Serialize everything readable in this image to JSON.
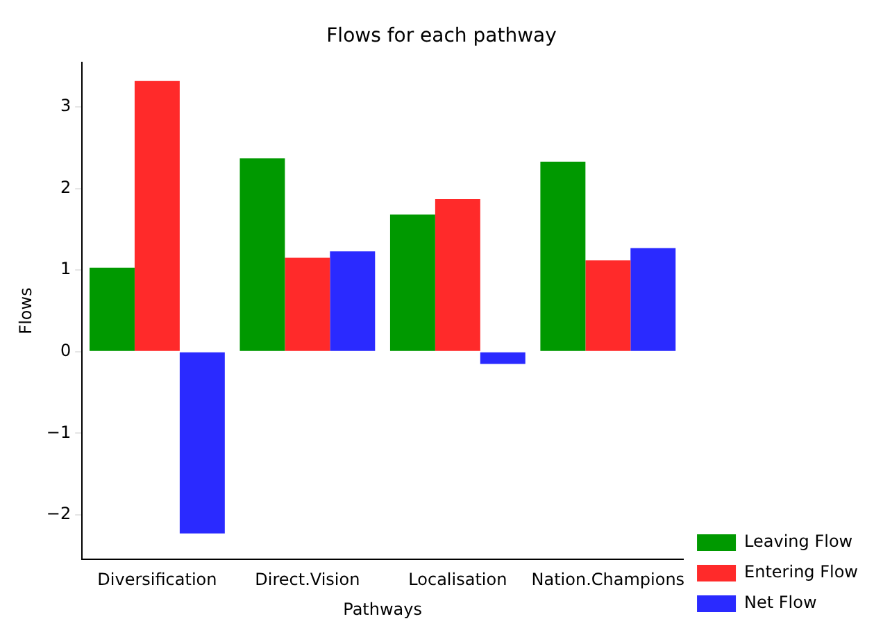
{
  "chart_data": {
    "type": "bar",
    "title": "Flows for each pathway",
    "xlabel": "Pathways",
    "ylabel": "Flows",
    "categories": [
      "Diversification",
      "Direct.Vision",
      "Localisation",
      "Nation.Champions"
    ],
    "series": [
      {
        "name": "Leaving Flow",
        "color": "#009900",
        "values": [
          1.03,
          2.37,
          1.68,
          2.33
        ]
      },
      {
        "name": "Entering Flow",
        "color": "#ff2a2a",
        "values": [
          3.32,
          1.15,
          1.87,
          1.12
        ]
      },
      {
        "name": "Net Flow",
        "color": "#2a2aff",
        "values": [
          -2.23,
          1.23,
          -0.15,
          1.27
        ]
      }
    ],
    "ylim": [
      -2.55,
      3.55
    ],
    "yticks": [
      {
        "value": -2,
        "label": "−2"
      },
      {
        "value": -1,
        "label": "−1"
      },
      0,
      1,
      2,
      3
    ],
    "grid": false,
    "legend": "bottom right"
  }
}
